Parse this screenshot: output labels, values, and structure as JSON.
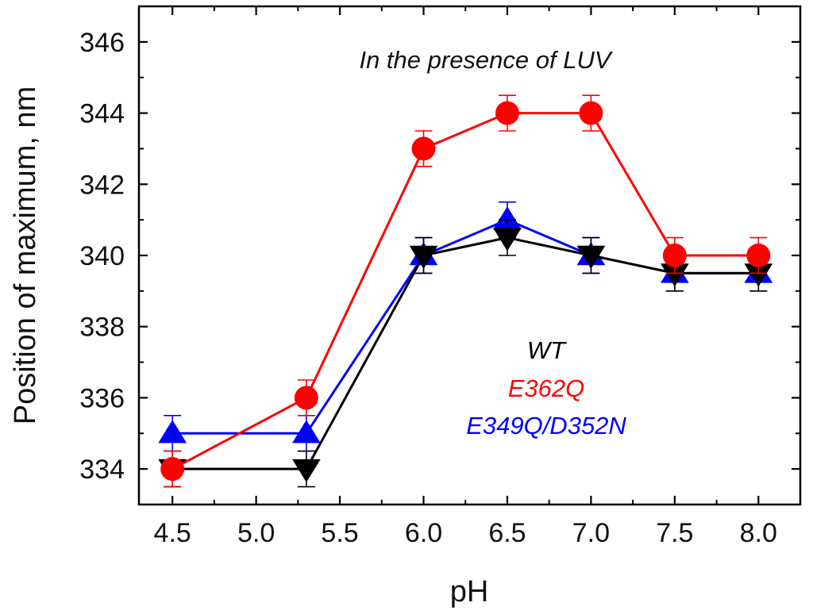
{
  "chart_data": {
    "type": "line",
    "title": "",
    "annotation": "In the presence of LUV",
    "xlabel": "pH",
    "ylabel": "Position of maximum, nm",
    "xlim": [
      4.3,
      8.25
    ],
    "ylim": [
      333.0,
      347.0
    ],
    "x_ticks": [
      4.5,
      5.0,
      5.5,
      6.0,
      6.5,
      7.0,
      7.5,
      8.0
    ],
    "x_tick_labels": [
      "4.5",
      "5.0",
      "5.5",
      "6.0",
      "6.5",
      "7.0",
      "7.5",
      "8.0"
    ],
    "y_ticks": [
      334,
      336,
      338,
      340,
      342,
      344,
      346
    ],
    "y_tick_labels": [
      "334",
      "336",
      "338",
      "340",
      "342",
      "344",
      "346"
    ],
    "grid": false,
    "legend_placement": "center-right",
    "series": [
      {
        "name": "E349Q/D352N",
        "color": "#0000ff",
        "marker": "triangle-up",
        "x": [
          4.5,
          5.3,
          6.0,
          6.5,
          7.0,
          7.5,
          8.0
        ],
        "values": [
          335.0,
          335.0,
          340.0,
          341.0,
          340.0,
          339.5,
          339.5
        ],
        "errors": [
          0.5,
          0.5,
          0.5,
          0.5,
          0.5,
          0.5,
          0.5
        ]
      },
      {
        "name": "WT",
        "color": "#000000",
        "marker": "triangle-down",
        "x": [
          4.5,
          5.3,
          6.0,
          6.5,
          7.0,
          7.5,
          8.0
        ],
        "values": [
          334.0,
          334.0,
          340.0,
          340.5,
          340.0,
          339.5,
          339.5
        ],
        "errors": [
          0.5,
          0.5,
          0.5,
          0.5,
          0.5,
          0.5,
          0.5
        ]
      },
      {
        "name": "E362Q",
        "color": "#ff0000",
        "marker": "circle",
        "x": [
          4.5,
          5.3,
          6.0,
          6.5,
          7.0,
          7.5,
          8.0
        ],
        "values": [
          334.0,
          336.0,
          343.0,
          344.0,
          344.0,
          340.0,
          340.0
        ],
        "errors": [
          0.5,
          0.5,
          0.5,
          0.5,
          0.5,
          0.5,
          0.5
        ]
      }
    ],
    "legend_order": [
      "WT",
      "E362Q",
      "E349Q/D352N"
    ]
  }
}
